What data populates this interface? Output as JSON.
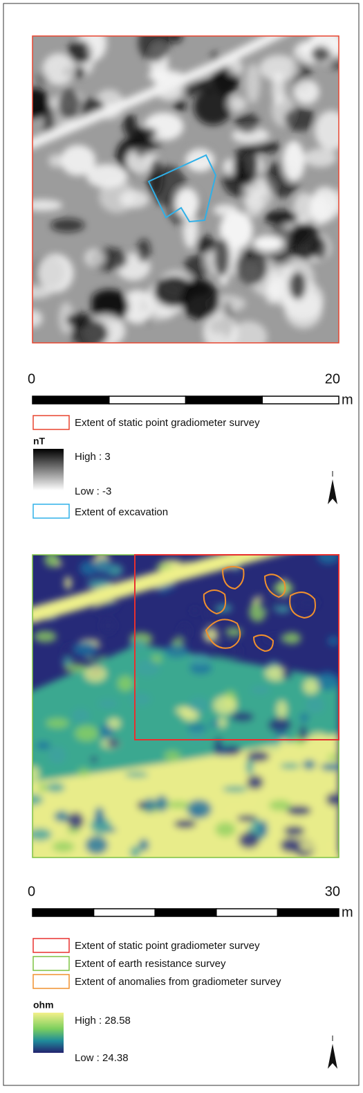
{
  "panels": [
    {
      "scale": {
        "start": "0",
        "end": "20",
        "unit": "m"
      },
      "legend": {
        "items": [
          "Extent of static point gradiometer survey"
        ],
        "unit": "nT",
        "high": "High : 3",
        "low": "Low : -3",
        "after": [
          "Extent of excavation"
        ]
      }
    },
    {
      "scale": {
        "start": "0",
        "end": "30",
        "unit": "m"
      },
      "legend": {
        "items": [
          "Extent of static point gradiometer survey",
          "Extent of earth resistance survey",
          "Extent of anomalies from gradiometer survey"
        ],
        "unit": "ohm",
        "high": "High : 28.58",
        "low": "Low : 24.38"
      }
    }
  ]
}
